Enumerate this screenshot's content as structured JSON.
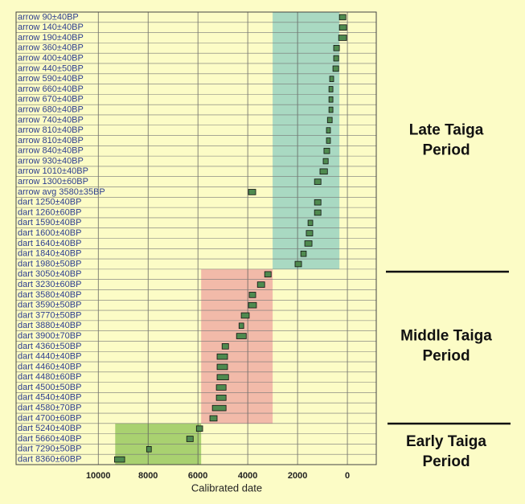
{
  "chart_data": {
    "type": "range",
    "x_label": "Calibrated date",
    "categories": [
      "arrow  90±40BP",
      "arrow  140±40BP",
      "arrow  190±40BP",
      "arrow  360±40BP",
      "arrow  400±40BP",
      "arrow  440±50BP",
      "arrow  590±40BP",
      "arrow  660±40BP",
      "arrow  670±40BP",
      "arrow  680±40BP",
      "arrow  740±40BP",
      "arrow  810±40BP",
      "arrow  810±40BP",
      "arrow  840±40BP",
      "arrow  930±40BP",
      "arrow  1010±40BP",
      "arrow  1300±60BP",
      "arrow avg  3580±35BP",
      "dart  1250±40BP",
      "dart  1260±60BP",
      "dart  1590±40BP",
      "dart  1600±40BP",
      "dart  1640±40BP",
      "dart  1840±40BP",
      "dart  1980±50BP",
      "dart  3050±40BP",
      "dart  3230±60BP",
      "dart  3580±40BP",
      "dart  3590±50BP",
      "dart  3770±50BP",
      "dart  3880±40BP",
      "dart  3900±70BP",
      "dart  4360±50BP",
      "dart  4440±40BP",
      "dart  4460±40BP",
      "dart  4480±60BP",
      "dart  4500±50BP",
      "dart  4540±40BP",
      "dart  4580±70BP",
      "dart  4700±60BP",
      "dart  5240±40BP",
      "dart  5660±40BP",
      "dart  7290±50BP",
      "dart  8360±60BP"
    ],
    "high": [
      320,
      320,
      350,
      550,
      550,
      580,
      710,
      740,
      740,
      740,
      800,
      840,
      840,
      940,
      970,
      1100,
      1320,
      3970,
      1320,
      1320,
      1580,
      1650,
      1710,
      1870,
      2100,
      3320,
      3610,
      3940,
      3970,
      4260,
      4350,
      4450,
      5030,
      5230,
      5230,
      5230,
      5260,
      5260,
      5420,
      5520,
      6060,
      6450,
      8060,
      9350
    ],
    "low": [
      60,
      30,
      30,
      320,
      350,
      350,
      550,
      580,
      580,
      580,
      610,
      680,
      680,
      710,
      770,
      800,
      1060,
      3680,
      1060,
      1060,
      1390,
      1390,
      1420,
      1650,
      1840,
      3060,
      3320,
      3680,
      3650,
      3940,
      4160,
      4060,
      4770,
      4810,
      4810,
      4770,
      4870,
      4870,
      4870,
      5230,
      5810,
      6190,
      7870,
      8940
    ],
    "color": "#4f8a4f",
    "xlim": [
      13300,
      -1160
    ],
    "xticks": [
      10000,
      8000,
      6000,
      4000,
      2000,
      0
    ],
    "periods": [
      {
        "label_lines": [
          "Late Taiga",
          "Period"
        ],
        "from": 3000,
        "to": 320,
        "rows": [
          0,
          24
        ],
        "color": "#a9d9c2"
      },
      {
        "label_lines": [
          "Middle Taiga",
          "Period"
        ],
        "from": 5870,
        "to": 3000,
        "rows": [
          25,
          39
        ],
        "color": "#f2baa9"
      },
      {
        "label_lines": [
          "Early Taiga",
          "Period"
        ],
        "from": 9320,
        "to": 5870,
        "rows": [
          40,
          43
        ],
        "color": "#a9d170"
      }
    ]
  }
}
